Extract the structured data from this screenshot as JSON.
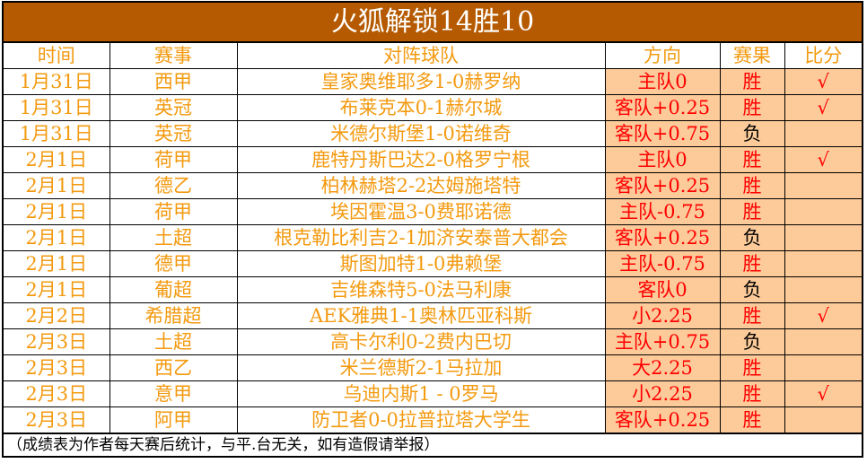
{
  "title": "火狐解锁14胜10",
  "headers": [
    "时间",
    "赛事",
    "对阵球队",
    "方向",
    "赛果",
    "比分"
  ],
  "rows": [
    {
      "date": "1月31日",
      "league": "西甲",
      "match": "皇家奥维耶多1-0赫罗纳",
      "pick": "主队0",
      "result": "胜",
      "check": "√"
    },
    {
      "date": "1月31日",
      "league": "英冠",
      "match": "布莱克本0-1赫尔城",
      "pick": "客队+0.25",
      "result": "胜",
      "check": "√"
    },
    {
      "date": "1月31日",
      "league": "英冠",
      "match": "米德尔斯堡1-0诺维奇",
      "pick": "客队+0.75",
      "result": "负",
      "check": ""
    },
    {
      "date": "2月1日",
      "league": "荷甲",
      "match": "鹿特丹斯巴达2-0格罗宁根",
      "pick": "主队0",
      "result": "胜",
      "check": "√"
    },
    {
      "date": "2月1日",
      "league": "德乙",
      "match": "柏林赫塔2-2达姆施塔特",
      "pick": "客队+0.25",
      "result": "胜",
      "check": ""
    },
    {
      "date": "2月1日",
      "league": "荷甲",
      "match": "埃因霍温3-0费耶诺德",
      "pick": "主队-0.75",
      "result": "胜",
      "check": ""
    },
    {
      "date": "2月1日",
      "league": "土超",
      "match": "根克勒比利吉2-1加济安泰普大都会",
      "pick": "客队+0.25",
      "result": "负",
      "check": ""
    },
    {
      "date": "2月1日",
      "league": "德甲",
      "match": "斯图加特1-0弗赖堡",
      "pick": "主队-0.75",
      "result": "胜",
      "check": ""
    },
    {
      "date": "2月1日",
      "league": "葡超",
      "match": "吉维森特5-0法马利康",
      "pick": "客队0",
      "result": "负",
      "check": ""
    },
    {
      "date": "2月2日",
      "league": "希腊超",
      "match": "AEK雅典1-1奥林匹亚科斯",
      "pick": "小2.25",
      "result": "胜",
      "check": "√"
    },
    {
      "date": "2月3日",
      "league": "土超",
      "match": "高卡尔利0-2费内巴切",
      "pick": "主队+0.75",
      "result": "负",
      "check": ""
    },
    {
      "date": "2月3日",
      "league": "西乙",
      "match": "米兰德斯2-1马拉加",
      "pick": "大2.25",
      "result": "胜",
      "check": ""
    },
    {
      "date": "2月3日",
      "league": "意甲",
      "match": "乌迪内斯1 - 0罗马",
      "pick": "小2.25",
      "result": "胜",
      "check": "√"
    },
    {
      "date": "2月3日",
      "league": "阿甲",
      "match": "防卫者0-0拉普拉塔大学生",
      "pick": "客队+0.25",
      "result": "胜",
      "check": ""
    }
  ],
  "footer": "（成绩表为作者每天赛后统计，与平.台无关，如有造假请举报）",
  "colors": {
    "title_bg": "#b55a00",
    "highlight": "#fdcb9a",
    "text": "#f39a10",
    "pick": "#ff0000"
  }
}
